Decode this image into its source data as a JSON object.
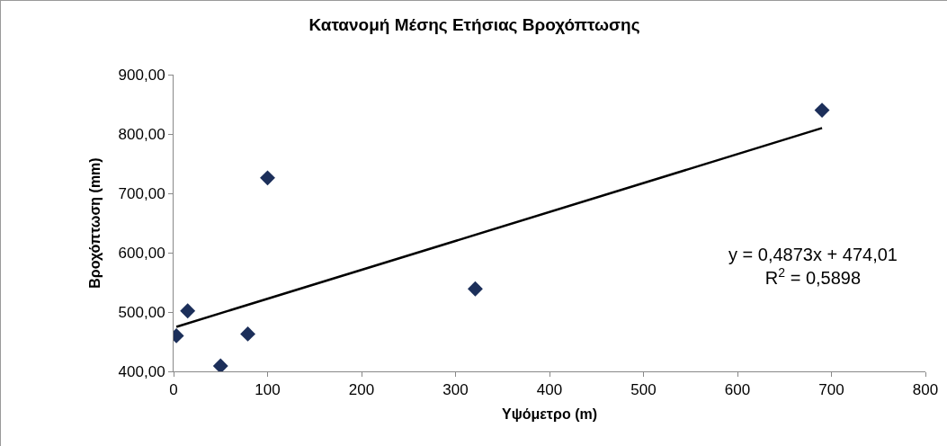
{
  "chart_data": {
    "type": "scatter",
    "title": "Κατανομή Μέσης Ετήσιας Βροχόπτωσης",
    "xlabel": "Υψόμετρο (m)",
    "ylabel": "Βροχόπτωση (mm)",
    "x": [
      3,
      15,
      50,
      79,
      100,
      321,
      690
    ],
    "series": [
      {
        "type": "scatter",
        "color": "#1c2f5a",
        "marker": "diamond",
        "values": [
          460,
          502,
          409,
          463,
          726,
          539,
          840
        ]
      },
      {
        "type": "line",
        "color": "#000000",
        "marker": "none",
        "x": [
          3,
          690
        ],
        "values": [
          475,
          810
        ]
      }
    ],
    "annotations": [
      "y = 0,4873x + 474,01\nR$^{2}$ = 0,5898"
    ],
    "xlim": [
      0,
      800
    ],
    "xticks": [
      0,
      100,
      200,
      300,
      400,
      500,
      600,
      700,
      800
    ],
    "ylim": [
      400,
      900
    ],
    "yticks": [
      {
        "value": 400,
        "label": "400,00"
      },
      {
        "value": 500,
        "label": "500,00"
      },
      {
        "value": 600,
        "label": "600,00"
      },
      {
        "value": 700,
        "label": "700,00"
      },
      {
        "value": 800,
        "label": "800,00"
      },
      {
        "value": 900,
        "label": "900,00"
      }
    ],
    "grid": false,
    "line_style": "solid"
  }
}
